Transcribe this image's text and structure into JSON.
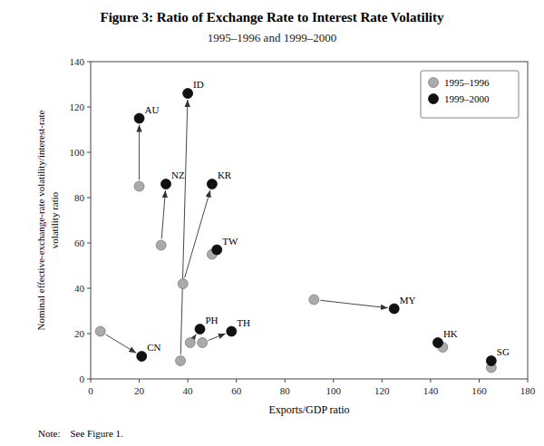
{
  "chart_data": {
    "type": "scatter",
    "title": "Figure 3: Ratio of Exchange Rate to Interest Rate Volatility",
    "subtitle": "1995–1996 and 1999–2000",
    "x_label": "Exports/GDP ratio",
    "y_label": "Nominal effective-exchange-rate volatility/interest-rate\nvolatility ratio",
    "note": "Note:    See Figure 1.",
    "categories": [
      "AU",
      "CN",
      "HK",
      "ID",
      "KR",
      "MY",
      "NZ",
      "PH",
      "SG",
      "TH",
      "TW"
    ],
    "series": [
      {
        "name": "1995–1996",
        "color": "#aaaaaa",
        "x": [
          20,
          4,
          145,
          37,
          38,
          92,
          29,
          41,
          165,
          46,
          50
        ],
        "values": [
          85,
          21,
          14,
          8,
          42,
          35,
          59,
          16,
          5,
          16,
          55
        ]
      },
      {
        "name": "1999–2000",
        "color": "#111111",
        "x": [
          20,
          21,
          143,
          40,
          50,
          125,
          31,
          45,
          165,
          58,
          52
        ],
        "values": [
          115,
          10,
          16,
          126,
          86,
          31,
          86,
          22,
          8,
          21,
          57
        ]
      }
    ],
    "xlim": [
      0,
      180
    ],
    "ylim": [
      0,
      140
    ],
    "xticks": [
      0,
      20,
      40,
      60,
      80,
      100,
      120,
      140,
      160,
      180
    ],
    "yticks": [
      0,
      20,
      40,
      60,
      80,
      100,
      120,
      140
    ],
    "legend": "upper right"
  }
}
